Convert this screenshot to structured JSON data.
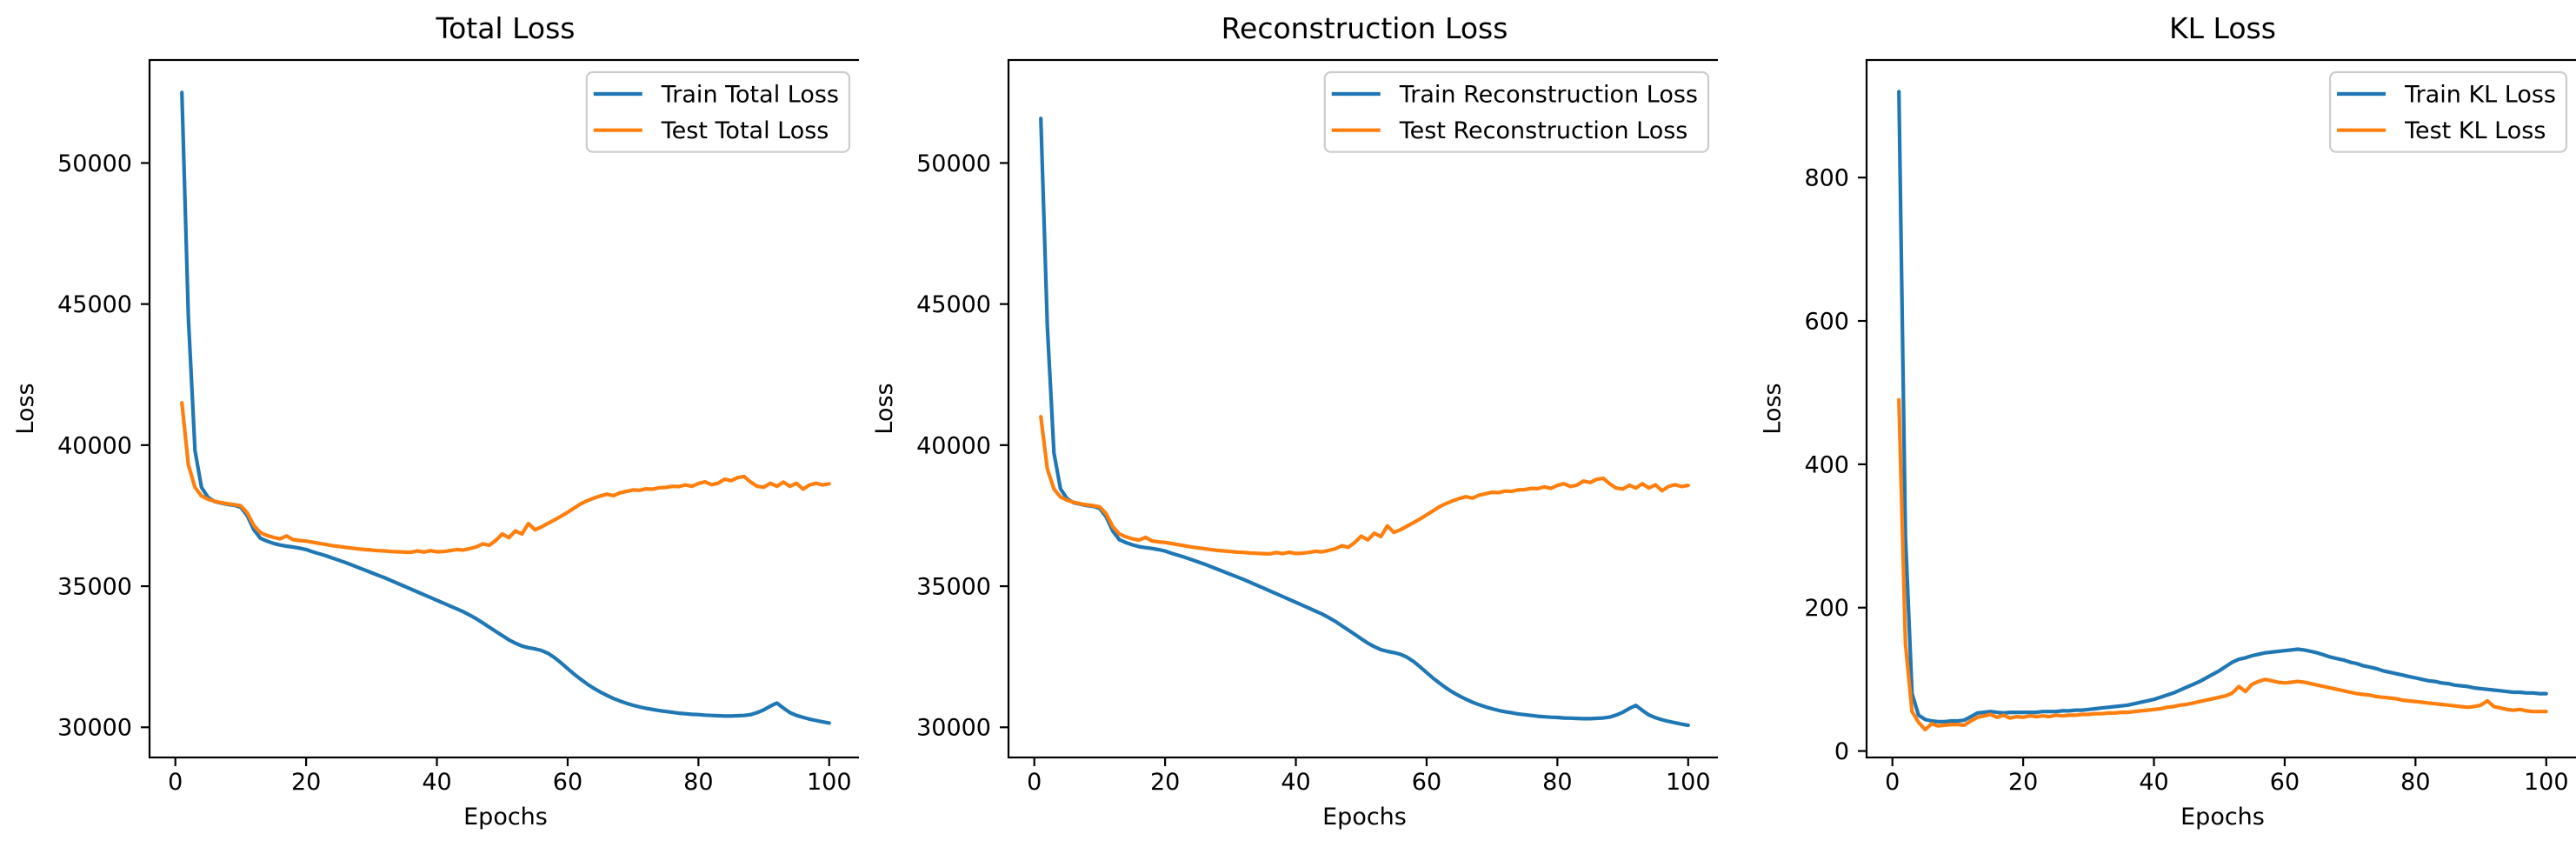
{
  "figure": {
    "background": "#ffffff",
    "text_color": "#000000",
    "spine_color": "#000000",
    "legend_edge_color": "#cccccc",
    "legend_face_color": "#ffffff",
    "epochs": [
      1,
      2,
      3,
      4,
      5,
      6,
      7,
      8,
      9,
      10,
      11,
      12,
      13,
      14,
      15,
      16,
      17,
      18,
      19,
      20,
      21,
      22,
      23,
      24,
      25,
      26,
      27,
      28,
      29,
      30,
      31,
      32,
      33,
      34,
      35,
      36,
      37,
      38,
      39,
      40,
      41,
      42,
      43,
      44,
      45,
      46,
      47,
      48,
      49,
      50,
      51,
      52,
      53,
      54,
      55,
      56,
      57,
      58,
      59,
      60,
      61,
      62,
      63,
      64,
      65,
      66,
      67,
      68,
      69,
      70,
      71,
      72,
      73,
      74,
      75,
      76,
      77,
      78,
      79,
      80,
      81,
      82,
      83,
      84,
      85,
      86,
      87,
      88,
      89,
      90,
      91,
      92,
      93,
      94,
      95,
      96,
      97,
      98,
      99,
      100
    ]
  },
  "chart_data": [
    {
      "type": "line",
      "title": "Total Loss",
      "xlabel": "Epochs",
      "ylabel": "Loss",
      "x_ticks": [
        0,
        20,
        40,
        60,
        80,
        100
      ],
      "y_ticks": [
        30000,
        35000,
        40000,
        45000,
        50000
      ],
      "xlim": [
        -3.95,
        104.95
      ],
      "ylim": [
        28930,
        53650
      ],
      "grid": false,
      "legend_position": "upper right",
      "series": [
        {
          "name": "Train Total Loss",
          "color": "#1f77b4",
          "values": [
            52500,
            44500,
            39800,
            38500,
            38150,
            38000,
            37950,
            37900,
            37870,
            37800,
            37500,
            37000,
            36700,
            36600,
            36520,
            36460,
            36420,
            36390,
            36350,
            36300,
            36220,
            36150,
            36080,
            36000,
            35920,
            35840,
            35750,
            35660,
            35570,
            35480,
            35390,
            35300,
            35200,
            35100,
            35000,
            34900,
            34800,
            34700,
            34600,
            34500,
            34400,
            34300,
            34200,
            34100,
            33980,
            33850,
            33700,
            33550,
            33400,
            33250,
            33100,
            32980,
            32880,
            32820,
            32780,
            32720,
            32620,
            32470,
            32280,
            32080,
            31880,
            31700,
            31530,
            31380,
            31250,
            31130,
            31020,
            30930,
            30850,
            30780,
            30720,
            30670,
            30630,
            30590,
            30560,
            30530,
            30500,
            30480,
            30460,
            30450,
            30430,
            30420,
            30410,
            30400,
            30400,
            30410,
            30420,
            30450,
            30520,
            30620,
            30750,
            30860,
            30680,
            30520,
            30420,
            30350,
            30290,
            30240,
            30190,
            30150
          ]
        },
        {
          "name": "Test Total Loss",
          "color": "#ff7f0e",
          "values": [
            41500,
            39300,
            38500,
            38200,
            38080,
            38010,
            37960,
            37920,
            37890,
            37850,
            37600,
            37150,
            36900,
            36800,
            36730,
            36680,
            36780,
            36650,
            36620,
            36600,
            36560,
            36520,
            36480,
            36440,
            36410,
            36380,
            36350,
            36320,
            36300,
            36280,
            36260,
            36250,
            36230,
            36220,
            36210,
            36200,
            36250,
            36210,
            36260,
            36220,
            36230,
            36260,
            36300,
            36280,
            36330,
            36390,
            36500,
            36450,
            36620,
            36850,
            36720,
            36960,
            36850,
            37220,
            37000,
            37100,
            37230,
            37350,
            37480,
            37620,
            37770,
            37920,
            38030,
            38120,
            38200,
            38260,
            38210,
            38310,
            38360,
            38410,
            38400,
            38450,
            38440,
            38490,
            38500,
            38540,
            38530,
            38590,
            38540,
            38640,
            38700,
            38600,
            38650,
            38790,
            38740,
            38850,
            38890,
            38690,
            38540,
            38510,
            38650,
            38540,
            38690,
            38540,
            38650,
            38440,
            38590,
            38650,
            38590,
            38630
          ]
        }
      ]
    },
    {
      "type": "line",
      "title": "Reconstruction Loss",
      "xlabel": "Epochs",
      "ylabel": "Loss",
      "x_ticks": [
        0,
        20,
        40,
        60,
        80,
        100
      ],
      "y_ticks": [
        30000,
        35000,
        40000,
        45000,
        50000
      ],
      "xlim": [
        -3.95,
        104.95
      ],
      "ylim": [
        28930,
        53650
      ],
      "grid": false,
      "legend_position": "upper right",
      "series": [
        {
          "name": "Train Reconstruction Loss",
          "color": "#1f77b4",
          "values": [
            51580,
            44200,
            39720,
            38450,
            38106,
            37958,
            37909,
            37859,
            37828,
            37758,
            37457,
            36952,
            36647,
            36546,
            36465,
            36406,
            36367,
            36336,
            36296,
            36246,
            36166,
            36096,
            36025,
            35945,
            35865,
            35784,
            35694,
            35603,
            35513,
            35422,
            35331,
            35240,
            35139,
            35038,
            34937,
            34836,
            34734,
            34632,
            34530,
            34428,
            34325,
            34222,
            34119,
            34015,
            33891,
            33757,
            33603,
            33448,
            33293,
            33138,
            32982,
            32856,
            32752,
            32690,
            32647,
            32585,
            32483,
            32332,
            32141,
            31940,
            31739,
            31558,
            31389,
            31241,
            31113,
            30996,
            30889,
            30801,
            30723,
            30656,
            30598,
            30551,
            30513,
            30475,
            30448,
            30420,
            30392,
            30374,
            30356,
            30348,
            30330,
            30322,
            30313,
            30305,
            30306,
            30318,
            30329,
            30360,
            30432,
            30533,
            30664,
            30775,
            30596,
            30437,
            30338,
            30268,
            30209,
            30159,
            30110,
            30070
          ]
        },
        {
          "name": "Test Reconstruction Loss",
          "color": "#ff7f0e",
          "values": [
            41010,
            39150,
            38445,
            38160,
            38050,
            37972,
            37925,
            37884,
            37853,
            37813,
            37564,
            37108,
            36853,
            36751,
            36679,
            36633,
            36730,
            36604,
            36572,
            36553,
            36511,
            36472,
            36431,
            36392,
            36360,
            36331,
            36300,
            36270,
            36249,
            36229,
            36208,
            36198,
            36177,
            36167,
            36156,
            36146,
            36195,
            36154,
            36203,
            36162,
            36171,
            36199,
            36238,
            36216,
            36265,
            36323,
            36431,
            36379,
            36547,
            36775,
            36643,
            36879,
            36760,
            37137,
            36907,
            37003,
            37130,
            37252,
            37384,
            37525,
            37674,
            37823,
            37934,
            38026,
            38108,
            38170,
            38122,
            38224,
            38276,
            38328,
            38320,
            38371,
            38362,
            38414,
            38425,
            38466,
            38457,
            38519,
            38470,
            38571,
            38632,
            38533,
            38584,
            38725,
            38676,
            38787,
            38828,
            38629,
            38478,
            38446,
            38580,
            38478,
            38630,
            38482,
            38593,
            38382,
            38534,
            38595,
            38535,
            38575
          ]
        }
      ]
    },
    {
      "type": "line",
      "title": "KL Loss",
      "xlabel": "Epochs",
      "ylabel": "Loss",
      "x_ticks": [
        0,
        20,
        40,
        60,
        80,
        100
      ],
      "y_ticks": [
        0,
        200,
        400,
        600,
        800
      ],
      "xlim": [
        -3.95,
        104.95
      ],
      "ylim": [
        -9,
        964
      ],
      "grid": false,
      "legend_position": "upper right",
      "series": [
        {
          "name": "Train KL Loss",
          "color": "#1f77b4",
          "values": [
            920,
            300,
            80,
            50,
            44,
            42,
            41,
            41,
            42,
            42,
            43,
            48,
            53,
            54,
            55,
            54,
            53,
            54,
            54,
            54,
            54,
            54,
            55,
            55,
            55,
            56,
            56,
            57,
            57,
            58,
            59,
            60,
            61,
            62,
            63,
            64,
            66,
            68,
            70,
            72,
            75,
            78,
            81,
            85,
            89,
            93,
            97,
            102,
            107,
            112,
            118,
            124,
            128,
            130,
            133,
            135,
            137,
            138,
            139,
            140,
            141,
            142,
            141,
            139,
            137,
            134,
            131,
            129,
            127,
            124,
            122,
            119,
            117,
            115,
            112,
            110,
            108,
            106,
            104,
            102,
            100,
            98,
            97,
            95,
            94,
            92,
            91,
            90,
            88,
            87,
            86,
            85,
            84,
            83,
            82,
            82,
            81,
            81,
            80,
            80
          ]
        },
        {
          "name": "Test KL Loss",
          "color": "#ff7f0e",
          "values": [
            490,
            150,
            55,
            40,
            30,
            38,
            35,
            36,
            37,
            37,
            36,
            42,
            47,
            49,
            51,
            47,
            50,
            46,
            48,
            47,
            49,
            48,
            49,
            48,
            50,
            49,
            50,
            50,
            51,
            51,
            52,
            52,
            53,
            53,
            54,
            54,
            55,
            56,
            57,
            58,
            59,
            61,
            62,
            64,
            65,
            67,
            69,
            71,
            73,
            75,
            77,
            81,
            90,
            83,
            93,
            97,
            100,
            98,
            96,
            95,
            96,
            97,
            96,
            94,
            92,
            90,
            88,
            86,
            84,
            82,
            80,
            79,
            78,
            76,
            75,
            74,
            73,
            71,
            70,
            69,
            68,
            67,
            66,
            65,
            64,
            63,
            62,
            61,
            62,
            64,
            70,
            62,
            60,
            58,
            57,
            58,
            56,
            55,
            55,
            55
          ]
        }
      ]
    }
  ]
}
